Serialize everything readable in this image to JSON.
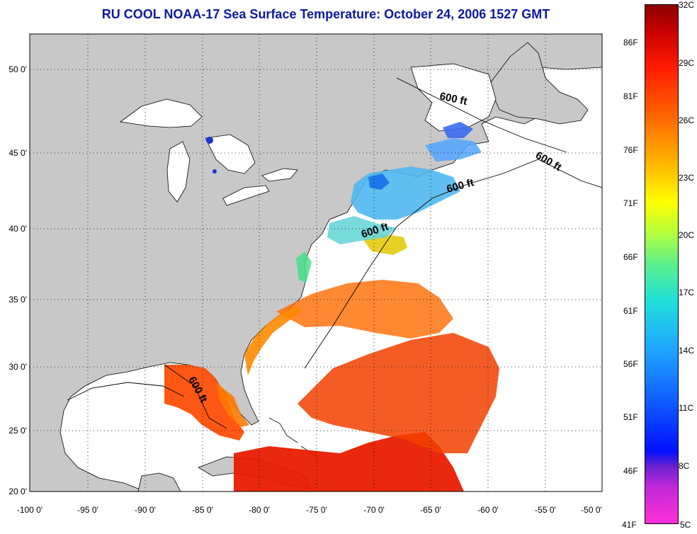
{
  "title": "RU COOL  NOAA-17  Sea Surface Temperature:  October 24, 2006 1527 GMT",
  "colors": {
    "title": "#0b1a9c",
    "land": "#c8c8c8",
    "ocean": "#ffffff"
  },
  "map": {
    "lon_range": [
      -100,
      -50
    ],
    "lat_range": [
      20,
      52.5
    ],
    "x_ticks": [
      "-100 0'",
      "-95 0'",
      "-90 0'",
      "-85 0'",
      "-80 0'",
      "-75 0'",
      "-70 0'",
      "-65 0'",
      "-60 0'",
      "-55 0'",
      "-50 0'"
    ],
    "y_ticks": [
      "50 0'",
      "45 0'",
      "40 0'",
      "35 0'",
      "30 0'",
      "25 0'",
      "20 0'"
    ],
    "grid": "dotted"
  },
  "contours": [
    {
      "label": "600 ft"
    },
    {
      "label": "600 ft"
    },
    {
      "label": "600 ft"
    },
    {
      "label": "600 ft"
    },
    {
      "label": "600 ft"
    }
  ],
  "colorbar": {
    "fahrenheit": [
      "86F",
      "81F",
      "76F",
      "71F",
      "66F",
      "61F",
      "56F",
      "51F",
      "46F",
      "41F"
    ],
    "celsius": [
      "32C",
      "29C",
      "26C",
      "23C",
      "20C",
      "17C",
      "14C",
      "11C",
      "8C",
      "5C"
    ]
  }
}
